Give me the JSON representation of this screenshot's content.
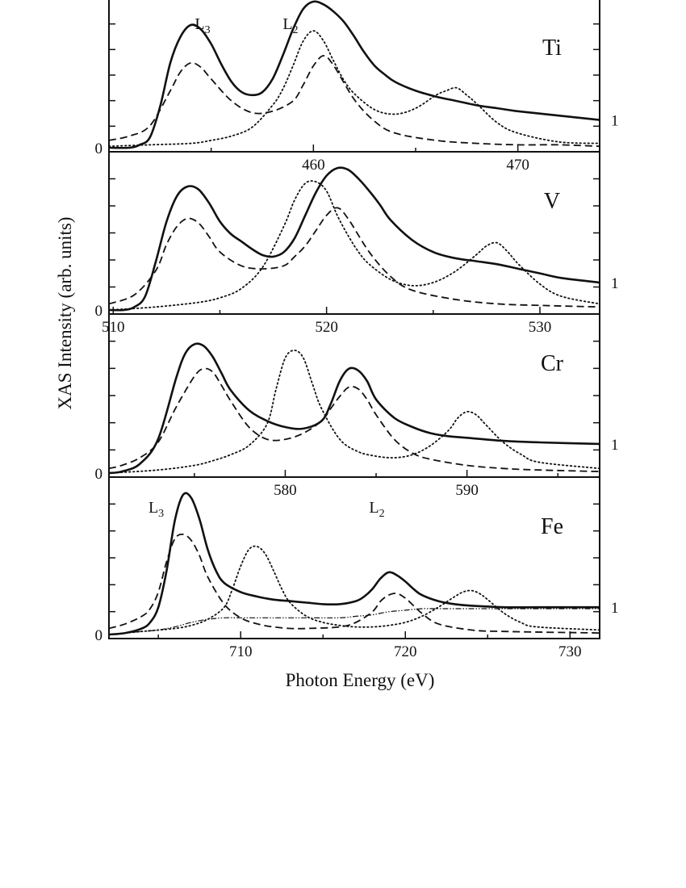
{
  "figure": {
    "ylabel": "XAS Intensity (arb. units)",
    "xlabel": "Photon Energy (eV)"
  },
  "chart_data": [
    {
      "type": "line",
      "element": "Ti",
      "xlim": [
        450.0,
        474.0
      ],
      "ylim": [
        0,
        1.0
      ],
      "xticks": [
        460,
        470
      ],
      "edge_labels": [
        {
          "main": "L",
          "sub": "3",
          "x": 454.2
        },
        {
          "main": "L",
          "sub": "2",
          "x": 458.5
        }
      ],
      "left_axis_zero_label": "0",
      "right_axis_label": "1",
      "right_axis_value": 0.19,
      "series": [
        {
          "style": "solid",
          "x": [
            450.0,
            451.0,
            451.5,
            452.0,
            452.5,
            453.0,
            453.5,
            454.0,
            454.5,
            455.0,
            455.5,
            456.0,
            456.5,
            457.0,
            457.5,
            458.0,
            458.5,
            459.0,
            459.5,
            460.0,
            460.5,
            461.0,
            461.5,
            462.0,
            462.5,
            463.0,
            463.5,
            464.0,
            465.0,
            466.0,
            467.0,
            468.0,
            469.0,
            470.0,
            472.0,
            474.0
          ],
          "y": [
            0.0,
            0.0,
            0.02,
            0.07,
            0.28,
            0.58,
            0.76,
            0.84,
            0.81,
            0.71,
            0.57,
            0.45,
            0.38,
            0.36,
            0.38,
            0.47,
            0.63,
            0.81,
            0.95,
            1.0,
            0.98,
            0.93,
            0.86,
            0.76,
            0.65,
            0.56,
            0.5,
            0.45,
            0.39,
            0.35,
            0.32,
            0.29,
            0.27,
            0.25,
            0.22,
            0.19
          ]
        },
        {
          "style": "dashed",
          "x": [
            450.0,
            451.0,
            452.0,
            453.0,
            453.5,
            454.0,
            454.5,
            455.0,
            456.0,
            457.0,
            458.0,
            459.0,
            459.5,
            460.0,
            460.5,
            461.0,
            462.0,
            463.0,
            464.0,
            466.0,
            468.0,
            470.0,
            472.0,
            474.0
          ],
          "y": [
            0.05,
            0.08,
            0.15,
            0.39,
            0.52,
            0.58,
            0.55,
            0.47,
            0.32,
            0.24,
            0.25,
            0.32,
            0.43,
            0.56,
            0.63,
            0.56,
            0.33,
            0.18,
            0.1,
            0.05,
            0.03,
            0.02,
            0.02,
            0.01
          ]
        },
        {
          "style": "dotted",
          "x": [
            450.0,
            452.0,
            454.0,
            455.0,
            456.0,
            457.0,
            458.0,
            458.5,
            459.0,
            459.5,
            460.0,
            460.5,
            461.0,
            461.5,
            462.0,
            463.0,
            464.0,
            465.0,
            466.0,
            466.5,
            467.0,
            467.5,
            468.0,
            469.0,
            470.0,
            472.0,
            474.0
          ],
          "y": [
            0.01,
            0.02,
            0.03,
            0.05,
            0.08,
            0.14,
            0.29,
            0.4,
            0.56,
            0.73,
            0.8,
            0.73,
            0.59,
            0.46,
            0.37,
            0.26,
            0.23,
            0.27,
            0.36,
            0.39,
            0.41,
            0.36,
            0.3,
            0.17,
            0.1,
            0.04,
            0.03
          ]
        }
      ]
    },
    {
      "type": "line",
      "element": "V",
      "xlim": [
        509.8,
        532.8
      ],
      "ylim": [
        0,
        1.0
      ],
      "xticks": [
        510,
        520,
        530
      ],
      "left_axis_zero_label": "0",
      "right_axis_label": "1",
      "right_axis_value": 0.18,
      "series": [
        {
          "style": "solid",
          "x": [
            509.8,
            510.5,
            511.0,
            511.5,
            512.0,
            512.5,
            513.0,
            513.5,
            514.0,
            514.5,
            515.0,
            515.5,
            516.0,
            516.5,
            517.0,
            517.5,
            518.0,
            518.5,
            519.0,
            519.5,
            520.0,
            520.5,
            521.0,
            521.5,
            522.0,
            522.5,
            523.0,
            524.0,
            525.0,
            526.0,
            527.0,
            528.0,
            529.0,
            530.0,
            531.0,
            532.8
          ],
          "y": [
            0.0,
            0.0,
            0.02,
            0.09,
            0.32,
            0.58,
            0.75,
            0.81,
            0.79,
            0.7,
            0.58,
            0.5,
            0.45,
            0.4,
            0.36,
            0.35,
            0.38,
            0.47,
            0.62,
            0.77,
            0.88,
            0.93,
            0.92,
            0.86,
            0.78,
            0.69,
            0.59,
            0.46,
            0.38,
            0.34,
            0.32,
            0.3,
            0.27,
            0.24,
            0.21,
            0.18
          ]
        },
        {
          "style": "dashed",
          "x": [
            509.8,
            511.0,
            512.0,
            512.5,
            513.0,
            513.5,
            514.0,
            514.5,
            515.0,
            516.0,
            517.0,
            518.0,
            518.5,
            519.0,
            519.5,
            520.0,
            520.5,
            521.0,
            522.0,
            523.0,
            524.0,
            526.0,
            528.0,
            530.0,
            532.8
          ],
          "y": [
            0.04,
            0.1,
            0.26,
            0.43,
            0.55,
            0.6,
            0.57,
            0.48,
            0.38,
            0.29,
            0.27,
            0.29,
            0.35,
            0.42,
            0.52,
            0.62,
            0.67,
            0.6,
            0.38,
            0.22,
            0.13,
            0.07,
            0.04,
            0.03,
            0.02
          ]
        },
        {
          "style": "dotted",
          "x": [
            509.8,
            512.0,
            514.0,
            515.0,
            516.0,
            517.0,
            518.0,
            518.5,
            519.0,
            519.5,
            520.0,
            520.5,
            521.0,
            521.5,
            522.0,
            523.0,
            524.0,
            525.0,
            526.0,
            527.0,
            527.5,
            528.0,
            528.5,
            529.0,
            530.0,
            531.0,
            532.8
          ],
          "y": [
            0.0,
            0.02,
            0.05,
            0.08,
            0.14,
            0.28,
            0.55,
            0.72,
            0.83,
            0.84,
            0.78,
            0.62,
            0.49,
            0.38,
            0.3,
            0.2,
            0.16,
            0.18,
            0.25,
            0.36,
            0.42,
            0.44,
            0.38,
            0.3,
            0.17,
            0.09,
            0.04
          ]
        }
      ]
    },
    {
      "type": "line",
      "element": "Cr",
      "xlim": [
        570.3,
        597.3
      ],
      "ylim": [
        0,
        1.0
      ],
      "xticks": [
        580,
        590
      ],
      "left_axis_zero_label": "0",
      "right_axis_label": "1",
      "right_axis_value": 0.19,
      "series": [
        {
          "style": "solid",
          "x": [
            570.3,
            571.0,
            572.0,
            573.0,
            574.0,
            574.5,
            575.0,
            575.5,
            576.0,
            576.5,
            577.0,
            578.0,
            579.0,
            580.0,
            581.0,
            582.0,
            582.5,
            583.0,
            583.5,
            584.0,
            584.5,
            585.0,
            586.0,
            587.0,
            588.0,
            589.0,
            590.0,
            592.0,
            594.0,
            597.3
          ],
          "y": [
            0.0,
            0.01,
            0.06,
            0.22,
            0.62,
            0.78,
            0.84,
            0.83,
            0.76,
            0.65,
            0.54,
            0.41,
            0.34,
            0.3,
            0.29,
            0.34,
            0.45,
            0.6,
            0.68,
            0.67,
            0.6,
            0.48,
            0.36,
            0.3,
            0.26,
            0.24,
            0.23,
            0.21,
            0.2,
            0.19
          ]
        },
        {
          "style": "dashed",
          "x": [
            570.3,
            571.0,
            572.0,
            573.0,
            574.0,
            575.0,
            575.5,
            576.0,
            576.5,
            577.0,
            578.0,
            579.0,
            580.0,
            581.0,
            582.0,
            582.5,
            583.0,
            583.5,
            584.0,
            584.5,
            585.0,
            586.0,
            587.0,
            588.0,
            590.0,
            592.0,
            594.0,
            597.3
          ],
          "y": [
            0.03,
            0.05,
            0.1,
            0.2,
            0.43,
            0.63,
            0.68,
            0.66,
            0.57,
            0.47,
            0.3,
            0.22,
            0.22,
            0.26,
            0.34,
            0.42,
            0.5,
            0.56,
            0.55,
            0.48,
            0.38,
            0.22,
            0.13,
            0.09,
            0.05,
            0.03,
            0.02,
            0.01
          ]
        },
        {
          "style": "dotted",
          "x": [
            570.3,
            573.0,
            575.0,
            576.0,
            577.0,
            578.0,
            579.0,
            579.5,
            580.0,
            580.5,
            581.0,
            581.5,
            582.0,
            583.0,
            584.0,
            585.0,
            586.0,
            587.0,
            588.0,
            589.0,
            589.5,
            590.0,
            590.5,
            591.0,
            592.0,
            593.0,
            594.0,
            597.3
          ],
          "y": [
            0.0,
            0.02,
            0.05,
            0.08,
            0.12,
            0.18,
            0.32,
            0.55,
            0.75,
            0.8,
            0.75,
            0.58,
            0.42,
            0.22,
            0.14,
            0.11,
            0.1,
            0.12,
            0.18,
            0.28,
            0.36,
            0.4,
            0.38,
            0.32,
            0.2,
            0.12,
            0.07,
            0.03
          ]
        }
      ]
    },
    {
      "type": "line",
      "element": "Fe",
      "xlim": [
        702.0,
        731.8
      ],
      "ylim": [
        0,
        1.0
      ],
      "xticks": [
        710,
        720,
        730
      ],
      "edge_labels": [
        {
          "main": "L",
          "sub": "3",
          "x": 704.4
        },
        {
          "main": "L",
          "sub": "2",
          "x": 717.8
        }
      ],
      "left_axis_zero_label": "0",
      "right_axis_label": "1",
      "right_axis_value": 0.18,
      "series": [
        {
          "style": "solid",
          "x": [
            702.0,
            703.0,
            704.0,
            704.5,
            705.0,
            705.5,
            706.0,
            706.5,
            707.0,
            707.5,
            708.0,
            708.5,
            709.0,
            710.0,
            711.0,
            712.0,
            713.0,
            714.0,
            715.0,
            716.0,
            717.0,
            717.5,
            718.0,
            718.5,
            719.0,
            719.5,
            720.0,
            720.5,
            721.0,
            722.0,
            723.0,
            724.0,
            726.0,
            728.0,
            731.8
          ],
          "y": [
            0.0,
            0.01,
            0.04,
            0.08,
            0.18,
            0.42,
            0.75,
            0.92,
            0.9,
            0.76,
            0.56,
            0.42,
            0.34,
            0.28,
            0.25,
            0.23,
            0.22,
            0.21,
            0.2,
            0.2,
            0.22,
            0.25,
            0.3,
            0.37,
            0.41,
            0.39,
            0.35,
            0.3,
            0.26,
            0.22,
            0.2,
            0.19,
            0.18,
            0.18,
            0.18
          ]
        },
        {
          "style": "dashed",
          "x": [
            702.0,
            703.0,
            704.0,
            704.5,
            705.0,
            705.5,
            706.0,
            706.5,
            707.0,
            707.5,
            708.0,
            709.0,
            710.0,
            711.0,
            712.0,
            713.0,
            714.0,
            716.0,
            717.0,
            718.0,
            718.5,
            719.0,
            719.5,
            720.0,
            720.5,
            721.0,
            722.0,
            724.0,
            726.0,
            731.8
          ],
          "y": [
            0.04,
            0.07,
            0.12,
            0.17,
            0.28,
            0.48,
            0.63,
            0.66,
            0.62,
            0.52,
            0.38,
            0.2,
            0.11,
            0.07,
            0.05,
            0.04,
            0.04,
            0.05,
            0.08,
            0.15,
            0.22,
            0.26,
            0.27,
            0.24,
            0.19,
            0.14,
            0.07,
            0.03,
            0.02,
            0.01
          ]
        },
        {
          "style": "dotted",
          "x": [
            702.0,
            704.0,
            706.0,
            707.0,
            708.0,
            709.0,
            709.5,
            710.0,
            710.5,
            711.0,
            711.5,
            712.0,
            712.5,
            713.0,
            714.0,
            715.0,
            716.0,
            717.0,
            718.0,
            719.0,
            720.0,
            721.0,
            722.0,
            723.0,
            723.5,
            724.0,
            724.5,
            725.0,
            726.0,
            727.0,
            728.0,
            731.8
          ],
          "y": [
            0.0,
            0.02,
            0.04,
            0.06,
            0.1,
            0.18,
            0.3,
            0.45,
            0.56,
            0.58,
            0.53,
            0.42,
            0.3,
            0.21,
            0.12,
            0.08,
            0.06,
            0.05,
            0.05,
            0.06,
            0.08,
            0.12,
            0.18,
            0.25,
            0.28,
            0.29,
            0.27,
            0.23,
            0.14,
            0.08,
            0.05,
            0.03
          ]
        },
        {
          "style": "dashdot",
          "x": [
            702.0,
            703.0,
            704.0,
            705.0,
            706.0,
            707.0,
            708.0,
            709.0,
            710.0,
            712.0,
            714.0,
            716.0,
            717.0,
            718.0,
            719.0,
            720.0,
            721.0,
            722.0,
            724.0,
            726.0,
            728.0,
            731.8
          ],
          "y": [
            0.0,
            0.01,
            0.02,
            0.03,
            0.05,
            0.08,
            0.1,
            0.11,
            0.11,
            0.11,
            0.11,
            0.11,
            0.12,
            0.13,
            0.15,
            0.16,
            0.17,
            0.17,
            0.17,
            0.17,
            0.17,
            0.17
          ]
        }
      ]
    }
  ]
}
